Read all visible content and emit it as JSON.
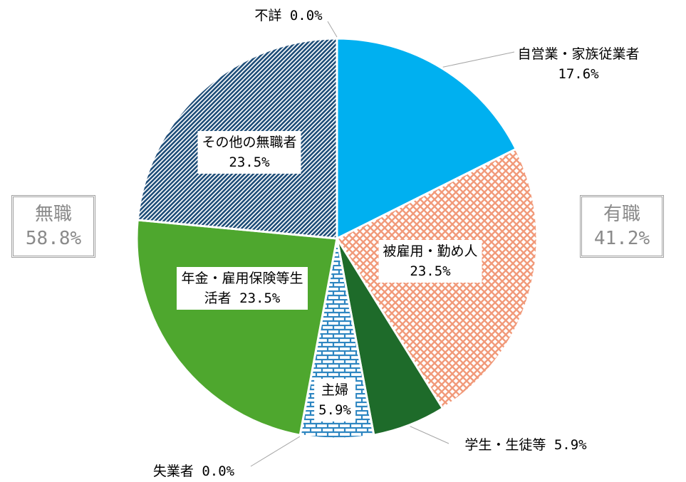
{
  "chart_data": {
    "type": "pie",
    "categories": [
      "自営業・家族従業者",
      "被雇用・勤め人",
      "学生・生徒等",
      "主婦",
      "失業者",
      "年金・雇用保険等生活者",
      "その他の無職者",
      "不詳"
    ],
    "values": [
      17.6,
      23.5,
      5.9,
      5.9,
      0.0,
      23.5,
      23.5,
      0.0
    ],
    "value_labels": [
      "17.6%",
      "23.5%",
      "5.9%",
      "5.9%",
      "0.0%",
      "23.5%",
      "23.5%",
      "0.0%"
    ],
    "colors": [
      "#00b0f0",
      "#f19a7a",
      "#1e6b2a",
      "#2e86c1",
      "#7f7f7f",
      "#4ea72e",
      "#1f4e79",
      "#7f7f7f"
    ],
    "patterns": [
      "solid",
      "crosshatch",
      "solid",
      "brick",
      "solid",
      "solid",
      "diagonal",
      "solid"
    ],
    "groups": [
      {
        "name": "有職",
        "value": 41.2,
        "value_label": "41.2%"
      },
      {
        "name": "無職",
        "value": 58.8,
        "value_label": "58.8%"
      }
    ]
  }
}
